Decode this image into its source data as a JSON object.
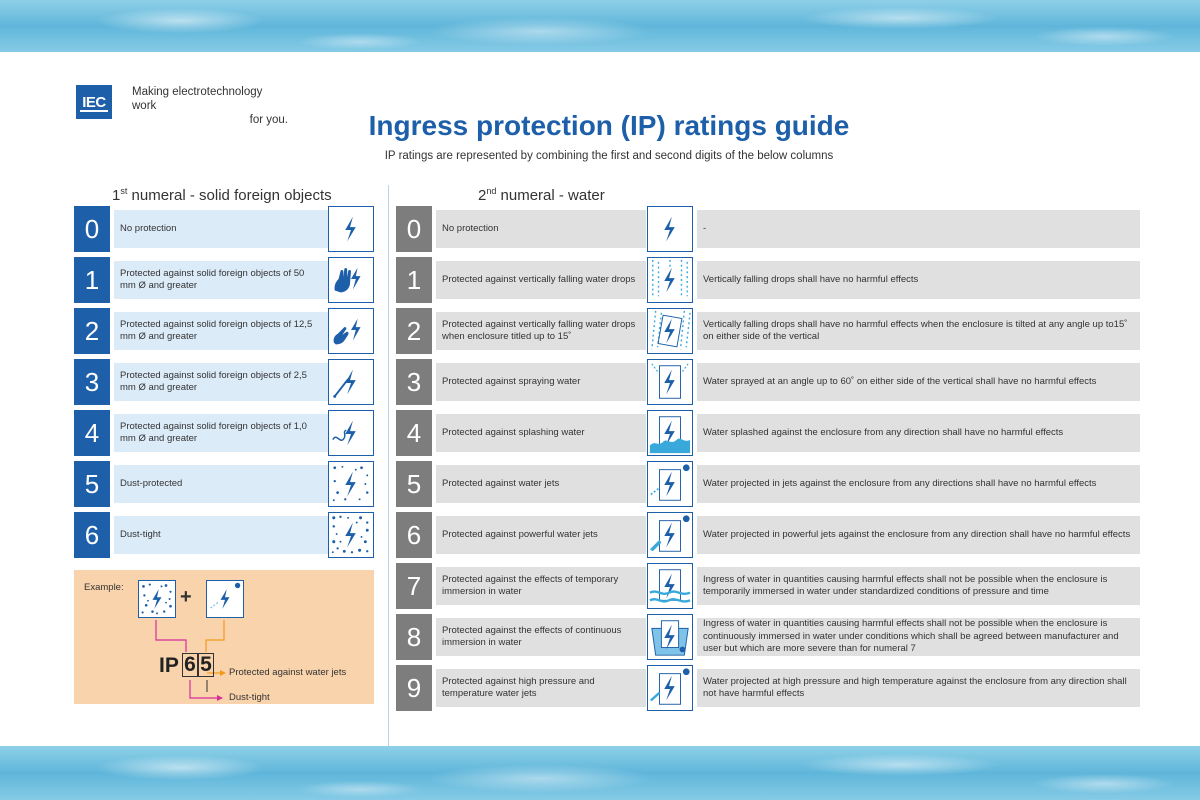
{
  "header": {
    "logo_text": "IEC",
    "tagline_line1": "Making  electrotechnology work",
    "tagline_line2": "for you.",
    "title": "Ingress protection (IP) ratings guide",
    "subtitle": "IP ratings are represented by combining the first and second digits of the below columns"
  },
  "solids": {
    "heading_prefix": "1",
    "heading_sup": "st",
    "heading_suffix": " numeral - solid foreign objects",
    "rows": [
      {
        "numeral": "0",
        "label": "No protection",
        "icon": "bolt-icon"
      },
      {
        "numeral": "1",
        "label": "Protected against solid foreign objects of 50 mm Ø and greater",
        "icon": "hand-icon"
      },
      {
        "numeral": "2",
        "label": "Protected against solid foreign objects of 12,5 mm Ø and greater",
        "icon": "finger-icon"
      },
      {
        "numeral": "3",
        "label": "Protected against solid foreign objects of 2,5 mm Ø and greater",
        "icon": "tool-icon"
      },
      {
        "numeral": "4",
        "label": "Protected against solid foreign objects of 1,0 mm Ø and greater",
        "icon": "wire-icon"
      },
      {
        "numeral": "5",
        "label": "Dust-protected",
        "icon": "dust-icon"
      },
      {
        "numeral": "6",
        "label": "Dust-tight",
        "icon": "dust-tight-icon"
      }
    ]
  },
  "water": {
    "heading_prefix": "2",
    "heading_sup": "nd",
    "heading_suffix": " numeral - water",
    "rows": [
      {
        "numeral": "0",
        "label": "No protection",
        "icon": "bolt-icon",
        "description": "-"
      },
      {
        "numeral": "1",
        "label": "Protected against vertically falling water drops",
        "icon": "drops-icon",
        "description": "Vertically falling drops shall have no harmful effects"
      },
      {
        "numeral": "2",
        "label": "Protected against vertically falling water drops when enclosure titled up to 15˚",
        "icon": "tilted-drops-icon",
        "description": "Vertically falling drops shall have no harmful effects when the enclosure is tilted at any angle up to15˚ on either side of the vertical"
      },
      {
        "numeral": "3",
        "label": "Protected against spraying water",
        "icon": "spray-icon",
        "description": "Water sprayed at an angle up to 60˚ on either side of the vertical shall have no harmful effects"
      },
      {
        "numeral": "4",
        "label": "Protected against splashing water",
        "icon": "splash-icon",
        "description": "Water splashed against the enclosure from any direction shall have no harmful effects"
      },
      {
        "numeral": "5",
        "label": "Protected against water jets",
        "icon": "jet-icon",
        "description": "Water projected in jets against the enclosure from any directions shall have no harmful effects"
      },
      {
        "numeral": "6",
        "label": "Protected against powerful water jets",
        "icon": "powerful-jet-icon",
        "description": "Water projected in powerful jets against the enclosure from any direction shall have no harmful effects"
      },
      {
        "numeral": "7",
        "label": "Protected against the effects of temporary immersion in water",
        "icon": "temporary-immersion-icon",
        "description": "Ingress of water in quantities causing harmful effects shall not be possible when the enclosure is temporarily immersed in water under standardized conditions of pressure and time"
      },
      {
        "numeral": "8",
        "label": "Protected against the effects of continuous immersion in water",
        "icon": "continuous-immersion-icon",
        "description": "Ingress of water in quantities causing harmful effects shall not be possible when the enclosure is continuously immersed in water under conditions which shall be agreed between manufacturer and user but which are more severe than for numeral 7"
      },
      {
        "numeral": "9",
        "label": "Protected against high pressure and temperature water jets",
        "icon": "high-pressure-jet-icon",
        "description": "Water projected at high pressure and high temperature against the enclosure from any direction shall not have harmful effects"
      }
    ]
  },
  "example": {
    "label": "Example:",
    "plus": "+",
    "ip_prefix": "IP",
    "digit1": "6",
    "digit2": "5",
    "digit2_meaning": "Protected against water jets",
    "digit1_meaning": "Dust-tight"
  },
  "colors": {
    "brand_blue": "#1d5fa8",
    "light_blue": "#dcebf8",
    "gray_numeral": "#7d7d7d",
    "gray_cell": "#e0e0e0",
    "example_bg": "#f9d3ab",
    "arrow_orange": "#f39a1e",
    "arrow_magenta": "#d62d9b"
  }
}
